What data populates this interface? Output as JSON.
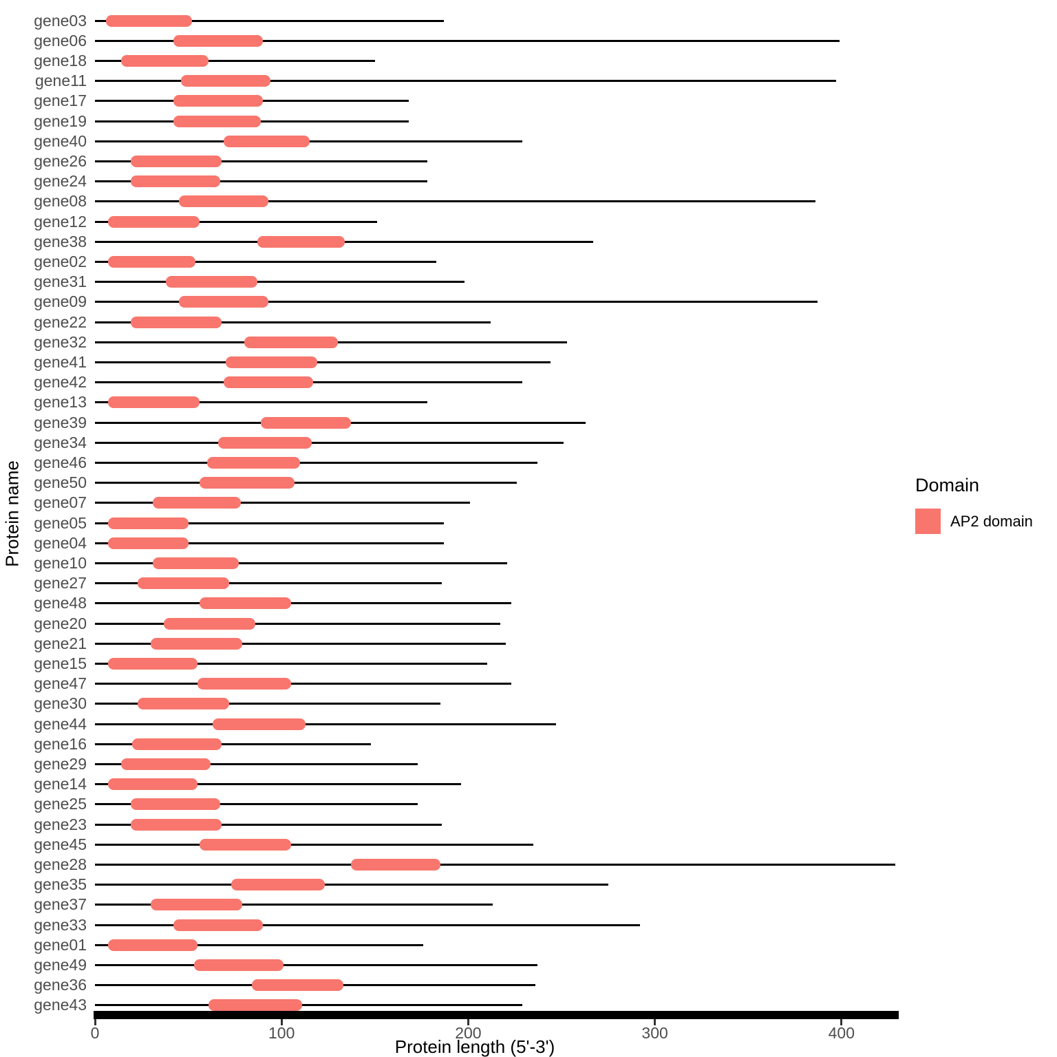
{
  "chart_data": {
    "type": "bar",
    "subtype": "horizontal-interval-on-line",
    "title": "",
    "xlabel": "Protein length (5'-3')",
    "ylabel": "Protein name",
    "xlim": [
      0,
      430
    ],
    "x_ticks": [
      0,
      100,
      200,
      300,
      400
    ],
    "grid": false,
    "legend": {
      "title": "Domain",
      "position": "right",
      "entries": [
        {
          "label": "AP2 domain",
          "color": "#F8766D"
        }
      ]
    },
    "encoding": {
      "line": "full protein length starting at 0",
      "bar": "AP2 domain interval [domain_start, domain_end]"
    },
    "genes": [
      {
        "name": "gene03",
        "protein_length": 187,
        "domain_start": 6,
        "domain_end": 52
      },
      {
        "name": "gene06",
        "protein_length": 399,
        "domain_start": 42,
        "domain_end": 90
      },
      {
        "name": "gene18",
        "protein_length": 150,
        "domain_start": 14,
        "domain_end": 61
      },
      {
        "name": "gene11",
        "protein_length": 397,
        "domain_start": 46,
        "domain_end": 94
      },
      {
        "name": "gene17",
        "protein_length": 168,
        "domain_start": 42,
        "domain_end": 90
      },
      {
        "name": "gene19",
        "protein_length": 168,
        "domain_start": 42,
        "domain_end": 89
      },
      {
        "name": "gene40",
        "protein_length": 229,
        "domain_start": 69,
        "domain_end": 115
      },
      {
        "name": "gene26",
        "protein_length": 178,
        "domain_start": 19,
        "domain_end": 68
      },
      {
        "name": "gene24",
        "protein_length": 178,
        "domain_start": 19,
        "domain_end": 67
      },
      {
        "name": "gene08",
        "protein_length": 386,
        "domain_start": 45,
        "domain_end": 93
      },
      {
        "name": "gene12",
        "protein_length": 151,
        "domain_start": 7,
        "domain_end": 56
      },
      {
        "name": "gene38",
        "protein_length": 267,
        "domain_start": 87,
        "domain_end": 134
      },
      {
        "name": "gene02",
        "protein_length": 183,
        "domain_start": 7,
        "domain_end": 54
      },
      {
        "name": "gene31",
        "protein_length": 198,
        "domain_start": 38,
        "domain_end": 87
      },
      {
        "name": "gene09",
        "protein_length": 387,
        "domain_start": 45,
        "domain_end": 93
      },
      {
        "name": "gene22",
        "protein_length": 212,
        "domain_start": 19,
        "domain_end": 68
      },
      {
        "name": "gene32",
        "protein_length": 253,
        "domain_start": 80,
        "domain_end": 130
      },
      {
        "name": "gene41",
        "protein_length": 244,
        "domain_start": 70,
        "domain_end": 119
      },
      {
        "name": "gene42",
        "protein_length": 229,
        "domain_start": 69,
        "domain_end": 117
      },
      {
        "name": "gene13",
        "protein_length": 178,
        "domain_start": 7,
        "domain_end": 56
      },
      {
        "name": "gene39",
        "protein_length": 263,
        "domain_start": 89,
        "domain_end": 137
      },
      {
        "name": "gene34",
        "protein_length": 251,
        "domain_start": 66,
        "domain_end": 116
      },
      {
        "name": "gene46",
        "protein_length": 237,
        "domain_start": 60,
        "domain_end": 110
      },
      {
        "name": "gene50",
        "protein_length": 226,
        "domain_start": 56,
        "domain_end": 107
      },
      {
        "name": "gene07",
        "protein_length": 201,
        "domain_start": 31,
        "domain_end": 78
      },
      {
        "name": "gene05",
        "protein_length": 187,
        "domain_start": 7,
        "domain_end": 50
      },
      {
        "name": "gene04",
        "protein_length": 187,
        "domain_start": 7,
        "domain_end": 50
      },
      {
        "name": "gene10",
        "protein_length": 221,
        "domain_start": 31,
        "domain_end": 77
      },
      {
        "name": "gene27",
        "protein_length": 186,
        "domain_start": 23,
        "domain_end": 72
      },
      {
        "name": "gene48",
        "protein_length": 223,
        "domain_start": 56,
        "domain_end": 105
      },
      {
        "name": "gene20",
        "protein_length": 217,
        "domain_start": 37,
        "domain_end": 86
      },
      {
        "name": "gene21",
        "protein_length": 220,
        "domain_start": 30,
        "domain_end": 79
      },
      {
        "name": "gene15",
        "protein_length": 210,
        "domain_start": 7,
        "domain_end": 55
      },
      {
        "name": "gene47",
        "protein_length": 223,
        "domain_start": 55,
        "domain_end": 105
      },
      {
        "name": "gene30",
        "protein_length": 185,
        "domain_start": 23,
        "domain_end": 72
      },
      {
        "name": "gene44",
        "protein_length": 247,
        "domain_start": 63,
        "domain_end": 113
      },
      {
        "name": "gene16",
        "protein_length": 148,
        "domain_start": 20,
        "domain_end": 68
      },
      {
        "name": "gene29",
        "protein_length": 173,
        "domain_start": 14,
        "domain_end": 62
      },
      {
        "name": "gene14",
        "protein_length": 196,
        "domain_start": 7,
        "domain_end": 55
      },
      {
        "name": "gene25",
        "protein_length": 173,
        "domain_start": 19,
        "domain_end": 67
      },
      {
        "name": "gene23",
        "protein_length": 186,
        "domain_start": 19,
        "domain_end": 68
      },
      {
        "name": "gene45",
        "protein_length": 235,
        "domain_start": 56,
        "domain_end": 105
      },
      {
        "name": "gene28",
        "protein_length": 429,
        "domain_start": 137,
        "domain_end": 185
      },
      {
        "name": "gene35",
        "protein_length": 275,
        "domain_start": 73,
        "domain_end": 123
      },
      {
        "name": "gene37",
        "protein_length": 213,
        "domain_start": 30,
        "domain_end": 79
      },
      {
        "name": "gene33",
        "protein_length": 292,
        "domain_start": 42,
        "domain_end": 90
      },
      {
        "name": "gene01",
        "protein_length": 176,
        "domain_start": 7,
        "domain_end": 55
      },
      {
        "name": "gene49",
        "protein_length": 237,
        "domain_start": 53,
        "domain_end": 101
      },
      {
        "name": "gene36",
        "protein_length": 236,
        "domain_start": 84,
        "domain_end": 133
      },
      {
        "name": "gene43",
        "protein_length": 229,
        "domain_start": 61,
        "domain_end": 111
      }
    ]
  },
  "colors": {
    "domain_fill": "#F8766D",
    "protein_line": "#000000",
    "axis_line": "#000000",
    "tick_text": "#4d4d4d",
    "axis_title_text": "#000000",
    "background": "#ffffff"
  }
}
